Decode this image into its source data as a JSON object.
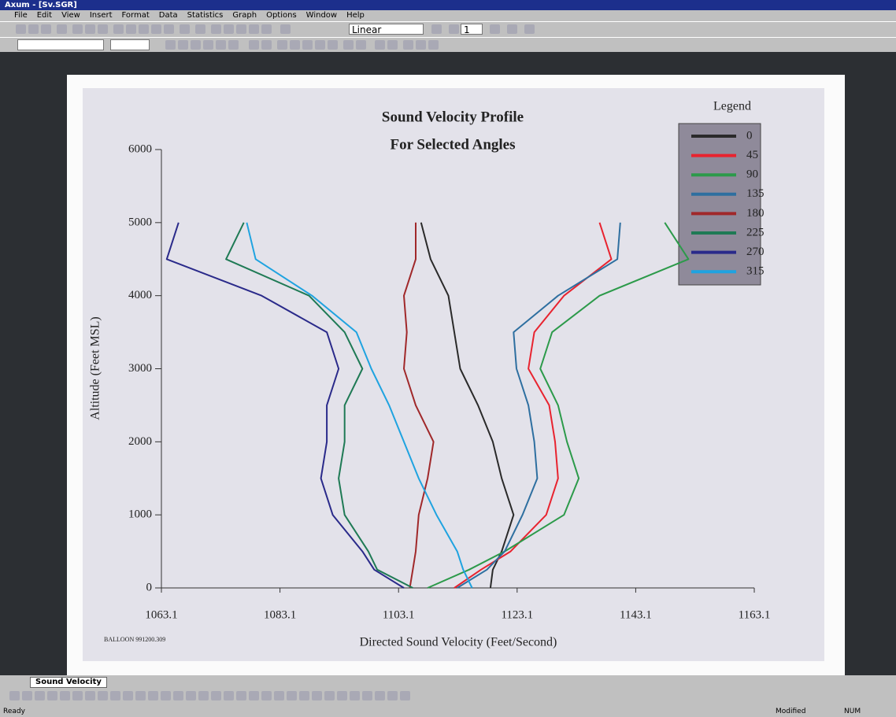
{
  "window": {
    "title": "Axum - [Sv.SGR]",
    "menu": [
      "File",
      "Edit",
      "View",
      "Insert",
      "Format",
      "Data",
      "Statistics",
      "Graph",
      "Options",
      "Window",
      "Help"
    ],
    "toolbar": {
      "scale": "Linear",
      "page": "1"
    },
    "tab": "Sound Velocity",
    "status": {
      "left": "Ready",
      "modified": "Modified",
      "num": "NUM"
    }
  },
  "chart_data": {
    "type": "line",
    "title": "Sound Velocity Profile",
    "subtitle": "For Selected Angles",
    "x_label": "Directed Sound Velocity (Feet/Second)",
    "y_label": "Altitude (Feet MSL)",
    "annotation": "BALLOON 991200.309",
    "legend_title": "Legend",
    "xlim": [
      1063.1,
      1163.1
    ],
    "xticks": [
      1063.1,
      1083.1,
      1103.1,
      1123.1,
      1143.1,
      1163.1
    ],
    "ylim": [
      0,
      6000
    ],
    "yticks": [
      0,
      1000,
      2000,
      3000,
      4000,
      5000,
      6000
    ],
    "series": [
      {
        "name": "0",
        "color": "#2a2a2a",
        "x": [
          1118.6,
          1119.0,
          1120.5,
          1122.5,
          1120.5,
          1119.0,
          1116.5,
          1113.5,
          1112.5,
          1111.5,
          1108.5,
          1106.9
        ],
        "values": [
          0,
          250,
          500,
          1000,
          1500,
          2000,
          2500,
          3000,
          3500,
          4000,
          4500,
          5000
        ]
      },
      {
        "name": "45",
        "color": "#e8232f",
        "x": [
          1112.5,
          1117,
          1122,
          1128,
          1130,
          1129.5,
          1128.5,
          1125,
          1126,
          1131,
          1139,
          1137
        ],
        "values": [
          0,
          250,
          500,
          1000,
          1500,
          2000,
          2500,
          3000,
          3500,
          4000,
          4500,
          5000
        ]
      },
      {
        "name": "90",
        "color": "#2c9a4a",
        "x": [
          1108,
          1115,
          1121,
          1131,
          1133.5,
          1131.5,
          1130,
          1127,
          1129,
          1137,
          1152,
          1148
        ],
        "values": [
          0,
          250,
          500,
          1000,
          1500,
          2000,
          2500,
          3000,
          3500,
          4000,
          4500,
          5000
        ]
      },
      {
        "name": "135",
        "color": "#2e6fa0",
        "x": [
          1113,
          1118,
          1121,
          1124,
          1126.5,
          1126,
          1125,
          1123,
          1122.5,
          1130,
          1140,
          1140.5
        ],
        "values": [
          0,
          250,
          500,
          1000,
          1500,
          2000,
          2500,
          3000,
          3500,
          4000,
          4500,
          5000
        ]
      },
      {
        "name": "180",
        "color": "#a0282a",
        "x": [
          1105,
          1105.5,
          1106,
          1106.5,
          1108,
          1109,
          1106,
          1104,
          1104.5,
          1104,
          1106,
          1106
        ],
        "values": [
          0,
          250,
          500,
          1000,
          1500,
          2000,
          2500,
          3000,
          3500,
          4000,
          4500,
          5000
        ]
      },
      {
        "name": "225",
        "color": "#1f7a55",
        "x": [
          1105.5,
          1099.5,
          1098,
          1094,
          1093,
          1094,
          1094,
          1097,
          1094,
          1088,
          1074,
          1077
        ],
        "values": [
          0,
          250,
          500,
          1000,
          1500,
          2000,
          2500,
          3000,
          3500,
          4000,
          4500,
          5000
        ]
      },
      {
        "name": "270",
        "color": "#2a2a8a",
        "x": [
          1104,
          1099,
          1097,
          1092,
          1090,
          1091,
          1091,
          1093,
          1091,
          1080,
          1064,
          1066
        ],
        "values": [
          0,
          250,
          500,
          1000,
          1500,
          2000,
          2500,
          3000,
          3500,
          4000,
          4500,
          5000
        ]
      },
      {
        "name": "315",
        "color": "#1fa3e0",
        "x": [
          1115.5,
          1114,
          1113,
          1109.5,
          1106.5,
          1104,
          1101.5,
          1098.5,
          1096,
          1088.5,
          1079,
          1077.5
        ],
        "values": [
          0,
          250,
          500,
          1000,
          1500,
          2000,
          2500,
          3000,
          3500,
          4000,
          4500,
          5000
        ]
      }
    ]
  }
}
